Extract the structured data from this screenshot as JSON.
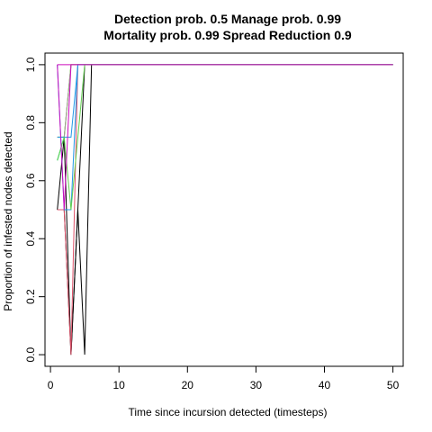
{
  "chart_data": {
    "type": "line",
    "title_line1": "Detection prob. 0.5 Manage prob. 0.99",
    "title_line2": "Mortality prob. 0.99 Spread Reduction 0.9",
    "xlabel": "Time since incursion detected (timesteps)",
    "ylabel": "Proportion of infested nodes detected",
    "xlim": [
      -0.8,
      51.5
    ],
    "ylim": [
      -0.04,
      1.04
    ],
    "xticks": [
      0,
      10,
      20,
      30,
      40,
      50
    ],
    "yticks": [
      0.0,
      0.2,
      0.4,
      0.6,
      0.8,
      1.0
    ],
    "xtick_labels": [
      "0",
      "10",
      "20",
      "30",
      "40",
      "50"
    ],
    "ytick_labels": [
      "0.0",
      "0.2",
      "0.4",
      "0.6",
      "0.8",
      "1.0"
    ],
    "grid": false,
    "legend": "none",
    "series": [
      {
        "color": "#000000",
        "x": [
          1,
          2,
          3,
          4,
          5,
          6,
          50
        ],
        "y": [
          0.5,
          0.75,
          0.0,
          0.5,
          0.0,
          1.0,
          1.0
        ]
      },
      {
        "color": "#000000",
        "x": [
          1,
          2,
          3,
          4,
          5,
          50
        ],
        "y": [
          0.5,
          0.5,
          0.0,
          0.5,
          1.0,
          1.0
        ]
      },
      {
        "color": "#df536b",
        "x": [
          1,
          2,
          3,
          4,
          50
        ],
        "y": [
          0.5,
          0.5,
          0.0,
          1.0,
          1.0
        ]
      },
      {
        "color": "#61d04f",
        "x": [
          1,
          2,
          3,
          50
        ],
        "y": [
          0.67,
          0.75,
          1.0,
          1.0
        ]
      },
      {
        "color": "#2297e6",
        "x": [
          1,
          2,
          3,
          4,
          50
        ],
        "y": [
          1.0,
          0.5,
          0.5,
          1.0,
          1.0
        ]
      },
      {
        "color": "#28e2e5",
        "x": [
          1,
          2,
          3,
          50
        ],
        "y": [
          0.67,
          0.75,
          1.0,
          1.0
        ]
      },
      {
        "color": "#cd0bbc",
        "x": [
          1,
          2,
          50
        ],
        "y": [
          1.0,
          1.0,
          1.0
        ]
      },
      {
        "color": "#f5c710",
        "x": [
          1,
          2,
          3,
          50
        ],
        "y": [
          0.75,
          0.75,
          1.0,
          1.0
        ]
      },
      {
        "color": "#9e9e9e",
        "x": [
          1,
          2,
          3,
          50
        ],
        "y": [
          0.75,
          0.75,
          1.0,
          1.0
        ]
      },
      {
        "color": "#2297e6",
        "x": [
          1,
          2,
          3,
          4,
          50
        ],
        "y": [
          0.75,
          0.75,
          0.75,
          1.0,
          1.0
        ]
      },
      {
        "color": "#61d04f",
        "x": [
          1,
          2,
          3,
          4,
          5,
          50
        ],
        "y": [
          0.67,
          0.75,
          0.5,
          0.75,
          1.0,
          1.0
        ]
      },
      {
        "color": "#cd0bbc",
        "x": [
          1,
          2,
          3,
          50
        ],
        "y": [
          1.0,
          0.5,
          1.0,
          1.0
        ]
      }
    ]
  }
}
